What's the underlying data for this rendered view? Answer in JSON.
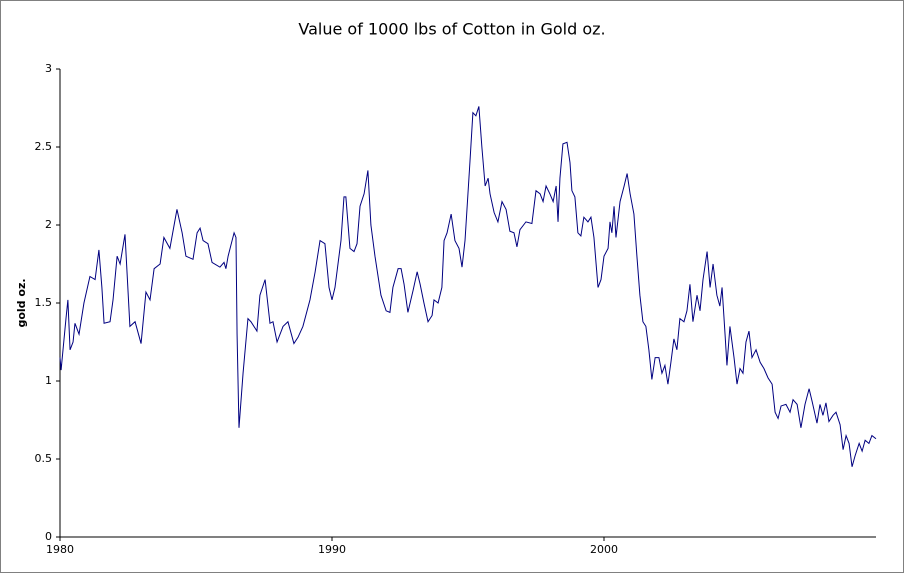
{
  "chart_data": {
    "type": "line",
    "title": "Value of 1000 lbs of Cotton in Gold oz.",
    "y_label": "gold oz.",
    "xlim": [
      1980,
      2010
    ],
    "xticks": [
      1980,
      1990,
      2000
    ],
    "ylim": [
      0,
      3
    ],
    "yticks": [
      0,
      0.5,
      1,
      1.5,
      2,
      2.5,
      3
    ],
    "grid": false,
    "x": [
      1980.0,
      1980.04,
      1980.22,
      1980.29,
      1980.37,
      1980.48,
      1980.55,
      1980.7,
      1980.88,
      1981.1,
      1981.29,
      1981.43,
      1981.54,
      1981.62,
      1981.84,
      1981.95,
      1982.1,
      1982.21,
      1982.39,
      1982.57,
      1982.76,
      1982.98,
      1983.16,
      1983.31,
      1983.46,
      1983.68,
      1983.82,
      1984.04,
      1984.3,
      1984.49,
      1984.63,
      1984.89,
      1985.04,
      1985.15,
      1985.26,
      1985.44,
      1985.59,
      1985.88,
      1986.03,
      1986.1,
      1986.18,
      1986.4,
      1986.47,
      1986.51,
      1986.58,
      1986.73,
      1986.91,
      1987.02,
      1987.24,
      1987.35,
      1987.54,
      1987.72,
      1987.83,
      1987.98,
      1988.2,
      1988.38,
      1988.6,
      1988.75,
      1988.93,
      1989.19,
      1989.38,
      1989.56,
      1989.74,
      1989.89,
      1990.0,
      1990.11,
      1990.33,
      1990.44,
      1990.51,
      1990.66,
      1990.81,
      1990.92,
      1991.03,
      1991.18,
      1991.32,
      1991.43,
      1991.58,
      1991.8,
      1991.99,
      1992.13,
      1992.24,
      1992.43,
      1992.54,
      1992.65,
      1992.79,
      1992.98,
      1993.13,
      1993.24,
      1993.38,
      1993.53,
      1993.68,
      1993.75,
      1993.9,
      1994.04,
      1994.12,
      1994.23,
      1994.38,
      1994.52,
      1994.67,
      1994.78,
      1994.89,
      1995.07,
      1995.18,
      1995.29,
      1995.4,
      1995.51,
      1995.63,
      1995.74,
      1995.81,
      1995.96,
      1996.1,
      1996.25,
      1996.4,
      1996.54,
      1996.69,
      1996.8,
      1996.91,
      1997.13,
      1997.35,
      1997.5,
      1997.65,
      1997.76,
      1997.87,
      1998.01,
      1998.13,
      1998.24,
      1998.31,
      1998.38,
      1998.49,
      1998.64,
      1998.75,
      1998.82,
      1998.93,
      1999.04,
      1999.15,
      1999.26,
      1999.41,
      1999.52,
      1999.63,
      1999.78,
      1999.89,
      2000.0,
      2000.15,
      2000.22,
      2000.29,
      2000.37,
      2000.44,
      2000.59,
      2000.74,
      2000.85,
      2000.96,
      2001.1,
      2001.21,
      2001.32,
      2001.43,
      2001.54,
      2001.65,
      2001.76,
      2001.88,
      2002.02,
      2002.13,
      2002.24,
      2002.35,
      2002.46,
      2002.57,
      2002.68,
      2002.79,
      2002.94,
      2003.05,
      2003.16,
      2003.27,
      2003.42,
      2003.53,
      2003.64,
      2003.79,
      2003.9,
      2004.01,
      2004.15,
      2004.26,
      2004.34,
      2004.45,
      2004.52,
      2004.63,
      2004.78,
      2004.89,
      2005.0,
      2005.11,
      2005.22,
      2005.33,
      2005.44,
      2005.59,
      2005.74,
      2005.88,
      2006.03,
      2006.18,
      2006.29,
      2006.4,
      2006.51,
      2006.69,
      2006.84,
      2006.95,
      2007.1,
      2007.24,
      2007.39,
      2007.54,
      2007.65,
      2007.83,
      2007.94,
      2008.05,
      2008.16,
      2008.27,
      2008.42,
      2008.53,
      2008.68,
      2008.79,
      2008.9,
      2009.01,
      2009.12,
      2009.23,
      2009.38,
      2009.49,
      2009.6,
      2009.74,
      2009.85,
      2010.0
    ],
    "series": [
      {
        "name": "gold oz.",
        "color": "#000080",
        "values": [
          1.15,
          1.07,
          1.4,
          1.52,
          1.2,
          1.25,
          1.37,
          1.3,
          1.5,
          1.67,
          1.65,
          1.84,
          1.6,
          1.37,
          1.38,
          1.52,
          1.8,
          1.75,
          1.94,
          1.35,
          1.38,
          1.24,
          1.57,
          1.52,
          1.72,
          1.75,
          1.92,
          1.85,
          2.1,
          1.95,
          1.8,
          1.78,
          1.95,
          1.98,
          1.9,
          1.88,
          1.76,
          1.73,
          1.76,
          1.72,
          1.8,
          1.95,
          1.92,
          1.3,
          0.7,
          1.05,
          1.4,
          1.38,
          1.32,
          1.55,
          1.65,
          1.37,
          1.38,
          1.25,
          1.35,
          1.38,
          1.24,
          1.28,
          1.35,
          1.52,
          1.7,
          1.9,
          1.88,
          1.6,
          1.52,
          1.6,
          1.9,
          2.18,
          2.18,
          1.85,
          1.83,
          1.88,
          2.12,
          2.2,
          2.35,
          2.0,
          1.8,
          1.55,
          1.45,
          1.44,
          1.6,
          1.72,
          1.72,
          1.62,
          1.44,
          1.58,
          1.7,
          1.62,
          1.5,
          1.38,
          1.42,
          1.52,
          1.5,
          1.6,
          1.9,
          1.95,
          2.07,
          1.9,
          1.85,
          1.73,
          1.9,
          2.4,
          2.72,
          2.7,
          2.76,
          2.5,
          2.25,
          2.3,
          2.2,
          2.08,
          2.02,
          2.15,
          2.1,
          1.96,
          1.95,
          1.86,
          1.97,
          2.02,
          2.01,
          2.22,
          2.2,
          2.15,
          2.25,
          2.2,
          2.15,
          2.25,
          2.02,
          2.3,
          2.52,
          2.53,
          2.4,
          2.22,
          2.18,
          1.95,
          1.93,
          2.05,
          2.02,
          2.05,
          1.92,
          1.6,
          1.65,
          1.8,
          1.85,
          2.02,
          1.95,
          2.12,
          1.92,
          2.15,
          2.25,
          2.33,
          2.2,
          2.07,
          1.8,
          1.55,
          1.38,
          1.35,
          1.2,
          1.01,
          1.15,
          1.15,
          1.05,
          1.1,
          0.98,
          1.12,
          1.27,
          1.2,
          1.4,
          1.38,
          1.45,
          1.62,
          1.38,
          1.55,
          1.45,
          1.65,
          1.83,
          1.6,
          1.75,
          1.55,
          1.48,
          1.6,
          1.3,
          1.1,
          1.35,
          1.15,
          0.98,
          1.08,
          1.05,
          1.25,
          1.32,
          1.15,
          1.2,
          1.12,
          1.08,
          1.02,
          0.98,
          0.8,
          0.76,
          0.84,
          0.85,
          0.8,
          0.88,
          0.85,
          0.7,
          0.85,
          0.95,
          0.87,
          0.73,
          0.85,
          0.78,
          0.86,
          0.74,
          0.78,
          0.8,
          0.72,
          0.56,
          0.65,
          0.6,
          0.45,
          0.52,
          0.6,
          0.55,
          0.62,
          0.6,
          0.65,
          0.63
        ]
      }
    ]
  }
}
